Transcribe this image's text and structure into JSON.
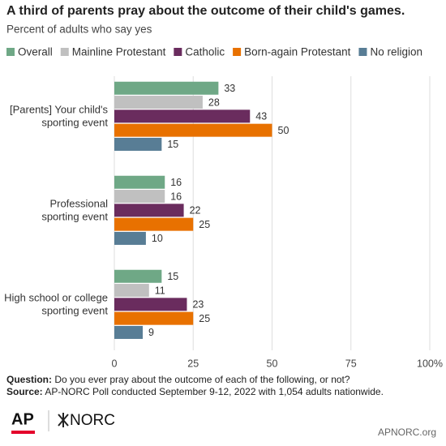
{
  "chart_data": {
    "type": "grouped-hbar",
    "title": "A third of parents pray about the outcome of their child's games.",
    "subtitle": "Percent of adults who say yes",
    "categories": [
      [
        "[Parents] Your child's",
        "sporting event"
      ],
      [
        "Professional",
        "sporting event"
      ],
      [
        "High school or college",
        "sporting event"
      ]
    ],
    "series": [
      {
        "name": "Overall",
        "color": "#6fa886",
        "values": [
          33,
          16,
          15
        ]
      },
      {
        "name": "Mainline Protestant",
        "color": "#c0c0c0",
        "values": [
          28,
          16,
          11
        ]
      },
      {
        "name": "Catholic",
        "color": "#6a2c5e",
        "values": [
          43,
          22,
          23
        ]
      },
      {
        "name": "Born-again Protestant",
        "color": "#e87100",
        "values": [
          50,
          25,
          25
        ]
      },
      {
        "name": "No religion",
        "color": "#587d95",
        "values": [
          15,
          10,
          9
        ]
      }
    ],
    "xlim": [
      0,
      100
    ],
    "xticks": [
      0,
      25,
      50,
      75,
      {
        "value": 100,
        "label": "100%"
      }
    ],
    "grid": true
  },
  "footer": {
    "question_label": "Question:",
    "question": "Do you ever pray about the outcome of each of the following, or not?",
    "source_label": "Source:",
    "source": "AP-NORC Poll conducted September 9-12, 2022 with 1,054 adults nationwide.",
    "logo_ap": "AP",
    "logo_norc": "NORC",
    "url": "APNORC.org"
  }
}
